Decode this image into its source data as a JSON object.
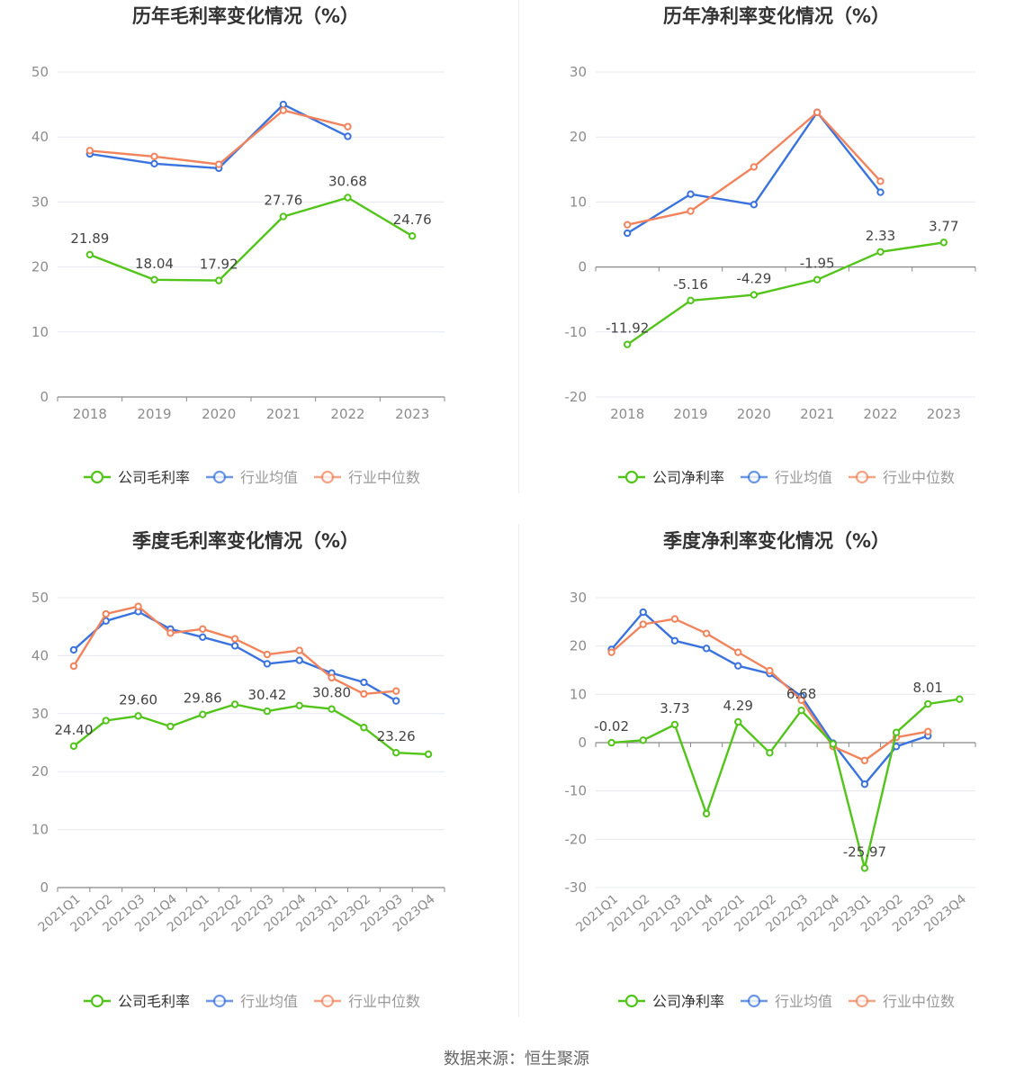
{
  "source_text": "数据来源：恒生聚源",
  "colors": {
    "company": "#52c41a",
    "avg": "#3b73de",
    "median": "#f2845d"
  },
  "chart_data": [
    {
      "type": "line",
      "title": "历年毛利率变化情况（%）",
      "categories": [
        "2018",
        "2019",
        "2020",
        "2021",
        "2022",
        "2023"
      ],
      "ylim": [
        0,
        50
      ],
      "yticks": [
        0,
        10,
        20,
        30,
        40,
        50
      ],
      "series": [
        {
          "name": "公司毛利率",
          "values": [
            21.89,
            18.04,
            17.92,
            27.76,
            30.68,
            24.76
          ],
          "labels": [
            "21.89",
            "18.04",
            "17.92",
            "27.76",
            "30.68",
            "24.76"
          ]
        },
        {
          "name": "行业均值",
          "values": [
            37.4,
            35.9,
            35.2,
            45.0,
            40.1,
            null
          ]
        },
        {
          "name": "行业中位数",
          "values": [
            37.9,
            37.0,
            35.8,
            44.1,
            41.6,
            null
          ]
        }
      ],
      "legend_position": "bottom",
      "grid": true
    },
    {
      "type": "line",
      "title": "历年净利率变化情况（%）",
      "categories": [
        "2018",
        "2019",
        "2020",
        "2021",
        "2022",
        "2023"
      ],
      "ylim": [
        -20,
        30
      ],
      "yticks": [
        -20,
        -10,
        0,
        10,
        20,
        30
      ],
      "series": [
        {
          "name": "公司净利率",
          "values": [
            -11.92,
            -5.16,
            -4.29,
            -1.95,
            2.33,
            3.77
          ],
          "labels": [
            "-11.92",
            "-5.16",
            "-4.29",
            "-1.95",
            "2.33",
            "3.77"
          ]
        },
        {
          "name": "行业均值",
          "values": [
            5.2,
            11.2,
            9.6,
            23.8,
            11.5,
            null
          ]
        },
        {
          "name": "行业中位数",
          "values": [
            6.5,
            8.6,
            15.4,
            23.8,
            13.2,
            null
          ]
        }
      ],
      "legend_position": "bottom",
      "grid": true
    },
    {
      "type": "line",
      "title": "季度毛利率变化情况（%）",
      "categories": [
        "2021Q1",
        "2021Q2",
        "2021Q3",
        "2021Q4",
        "2022Q1",
        "2022Q2",
        "2022Q3",
        "2022Q4",
        "2023Q1",
        "2023Q2",
        "2023Q3",
        "2023Q4"
      ],
      "ylim": [
        0,
        50
      ],
      "yticks": [
        0,
        10,
        20,
        30,
        40,
        50
      ],
      "series": [
        {
          "name": "公司毛利率",
          "values": [
            24.4,
            28.8,
            29.6,
            27.8,
            29.86,
            31.6,
            30.42,
            31.4,
            30.8,
            27.6,
            23.26,
            23.0
          ],
          "labels": [
            "24.40",
            "",
            "29.60",
            "",
            "29.86",
            "",
            "30.42",
            "",
            "30.80",
            "",
            "23.26",
            ""
          ]
        },
        {
          "name": "行业均值",
          "values": [
            41.0,
            46.0,
            47.6,
            44.6,
            43.2,
            41.7,
            38.6,
            39.2,
            37.0,
            35.4,
            32.2,
            null
          ]
        },
        {
          "name": "行业中位数",
          "values": [
            38.2,
            47.2,
            48.5,
            43.9,
            44.6,
            42.9,
            40.2,
            40.9,
            36.2,
            33.4,
            33.9,
            null
          ]
        }
      ],
      "legend_position": "bottom",
      "grid": true
    },
    {
      "type": "line",
      "title": "季度净利率变化情况（%）",
      "categories": [
        "2021Q1",
        "2021Q2",
        "2021Q3",
        "2021Q4",
        "2022Q1",
        "2022Q2",
        "2022Q3",
        "2022Q4",
        "2023Q1",
        "2023Q2",
        "2023Q3",
        "2023Q4"
      ],
      "ylim": [
        -30,
        30
      ],
      "yticks": [
        -30,
        -20,
        -10,
        0,
        10,
        20,
        30
      ],
      "series": [
        {
          "name": "公司净利率",
          "values": [
            -0.02,
            0.5,
            3.73,
            -14.7,
            4.29,
            -2.1,
            6.68,
            -0.3,
            -25.97,
            2.1,
            8.01,
            9.0
          ],
          "labels": [
            "-0.02",
            "",
            "3.73",
            "",
            "4.29",
            "",
            "6.68",
            "",
            "-25.97",
            "",
            "8.01",
            ""
          ]
        },
        {
          "name": "行业均值",
          "values": [
            19.3,
            27.0,
            21.1,
            19.5,
            15.9,
            14.3,
            9.6,
            -0.1,
            -8.6,
            -0.8,
            1.4,
            null
          ]
        },
        {
          "name": "行业中位数",
          "values": [
            18.7,
            24.5,
            25.6,
            22.6,
            18.7,
            14.9,
            8.8,
            -0.8,
            -3.7,
            1.1,
            2.3,
            null
          ]
        }
      ],
      "legend_position": "bottom",
      "grid": true
    }
  ]
}
